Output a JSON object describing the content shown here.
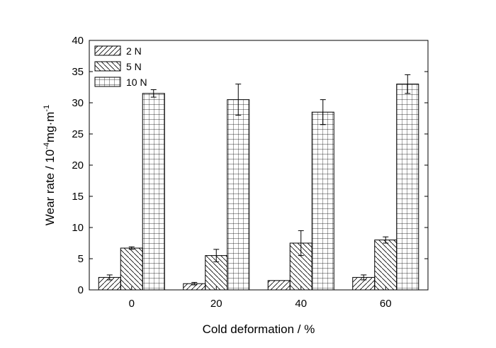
{
  "chart_data": {
    "type": "bar",
    "xlabel": "Cold deformation / %",
    "ylabel_main": "Wear rate / 10",
    "ylabel_sup": "-4",
    "ylabel_tail": "mg·m",
    "ylabel_sup2": "-1",
    "categories": [
      "0",
      "20",
      "40",
      "60"
    ],
    "ylim": [
      0,
      40
    ],
    "yticks": [
      "0",
      "5",
      "10",
      "15",
      "20",
      "25",
      "30",
      "35",
      "40"
    ],
    "legend_position": "top-left",
    "grid": false,
    "series": [
      {
        "name": "2 N",
        "pattern": "hatch-forward",
        "values": [
          2.0,
          1.0,
          1.5,
          2.0
        ],
        "errors": [
          0.4,
          0.2,
          0.0,
          0.4
        ]
      },
      {
        "name": "5 N",
        "pattern": "hatch-back",
        "values": [
          6.7,
          5.5,
          7.5,
          8.0
        ],
        "errors": [
          0.2,
          1.0,
          2.0,
          0.5
        ]
      },
      {
        "name": "10 N",
        "pattern": "grid",
        "values": [
          31.5,
          30.5,
          28.5,
          33.0
        ],
        "errors": [
          0.6,
          2.5,
          2.0,
          1.5
        ]
      }
    ]
  }
}
